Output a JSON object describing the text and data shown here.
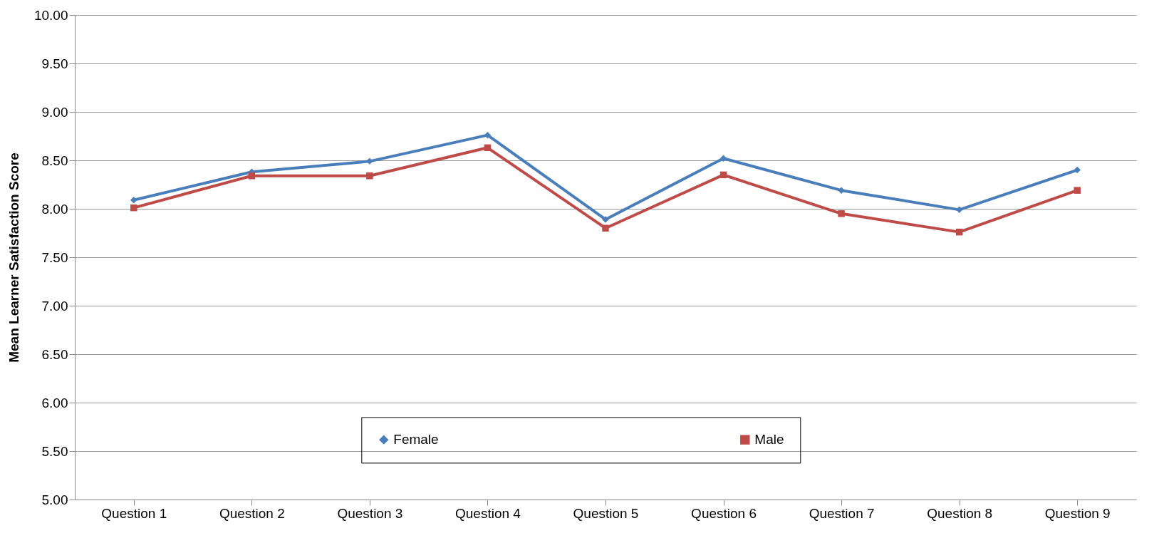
{
  "chart_data": {
    "type": "line",
    "ylabel": "Mean Learner Satisfaction Score",
    "categories": [
      "Question 1",
      "Question 2",
      "Question 3",
      "Question 4",
      "Question 5",
      "Question 6",
      "Question 7",
      "Question 8",
      "Question 9"
    ],
    "series": [
      {
        "name": "Female",
        "color": "#4a7ebb",
        "marker": "diamond",
        "values": [
          8.09,
          8.38,
          8.49,
          8.76,
          7.89,
          8.52,
          8.19,
          7.99,
          8.4
        ]
      },
      {
        "name": "Male",
        "color": "#be4b48",
        "marker": "square",
        "values": [
          8.01,
          8.34,
          8.34,
          8.63,
          7.8,
          8.35,
          7.95,
          7.76,
          8.19
        ]
      }
    ],
    "ylim": [
      5,
      10
    ],
    "yticks": [
      {
        "value": 5,
        "label": "5.00"
      },
      {
        "value": 5.5,
        "label": "5.50"
      },
      {
        "value": 6,
        "label": "6.00"
      },
      {
        "value": 6.5,
        "label": "6.50"
      },
      {
        "value": 7,
        "label": "7.00"
      },
      {
        "value": 7.5,
        "label": "7.50"
      },
      {
        "value": 8,
        "label": "8.00"
      },
      {
        "value": 8.5,
        "label": "8.50"
      },
      {
        "value": 9,
        "label": "9.00"
      },
      {
        "value": 9.5,
        "label": "9.50"
      },
      {
        "value": 10,
        "label": "10.00"
      }
    ],
    "grid": "y",
    "legend": "bottom",
    "line_style": "solid"
  }
}
